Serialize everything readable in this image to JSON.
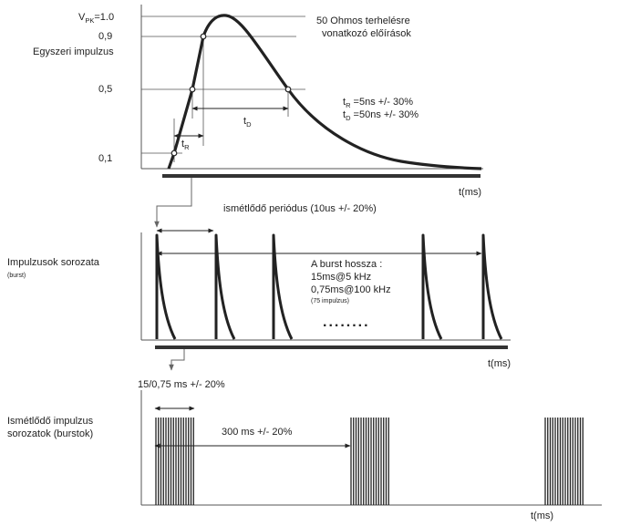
{
  "colors": {
    "ink": "#222222",
    "thin": "#555555",
    "background": "#ffffff"
  },
  "single_pulse": {
    "ylabel": "Egyszeri impulzus",
    "vpk_main": "V",
    "vpk_sub": "PK",
    "vpk_value": "=1.0",
    "tick_09": "0,9",
    "tick_05": "0,5",
    "tick_01": "0,1",
    "note_line1": "50 Ohmos terhelésre",
    "note_line2": "vonatkozó előírások",
    "tr_main": "t",
    "tr_sub": "R",
    "td_main": "t",
    "td_sub": "D",
    "spec_tr_main": "t",
    "spec_tr_sub": "R",
    "spec_tr_value": " =5ns +/- 30%",
    "spec_td_main": "t",
    "spec_td_sub": "D",
    "spec_td_value": " =50ns +/- 30%",
    "xlabel": "t(ms)"
  },
  "burst": {
    "period_label": "ismétlődő periódus (10us +/- 20%)",
    "ylabel_line1": "Impulzusok sorozata",
    "ylabel_line2": "(burst)",
    "length_title": "A burst hossza :",
    "length_line1": "15ms@5 kHz",
    "length_line2": "0,75ms@100 kHz",
    "length_note": "(75 impulzus)",
    "dots": "........",
    "xlabel": "t(ms)"
  },
  "repeated": {
    "duration_label": "15/0,75 ms +/- 20%",
    "ylabel_line1": "Ismétlődő impulzus",
    "ylabel_line2": "sorozatok (burstok)",
    "spacing_label": "300 ms +/- 20%",
    "xlabel": "t(ms)"
  }
}
